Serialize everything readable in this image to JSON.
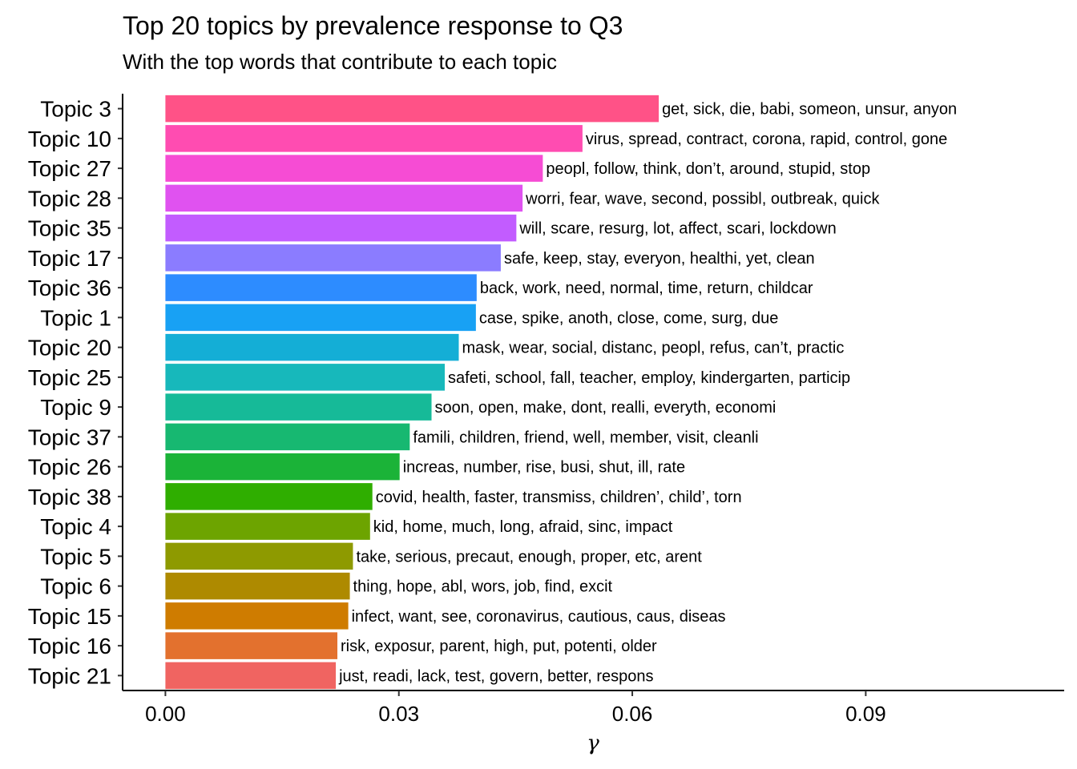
{
  "chart_data": {
    "type": "bar",
    "orientation": "horizontal",
    "title": "Top 20 topics by prevalence response to Q3",
    "subtitle": "With the top words that contribute to each topic",
    "xlabel": "γ",
    "ylabel": "",
    "xlim": [
      -0.0055,
      0.1155
    ],
    "xticks": [
      "0.00",
      "0.03",
      "0.06",
      "0.09"
    ],
    "xtick_values": [
      0.0,
      0.03,
      0.06,
      0.09
    ],
    "grid": false,
    "legend": "none",
    "categories": [
      "Topic 3",
      "Topic 10",
      "Topic 27",
      "Topic 28",
      "Topic 35",
      "Topic 17",
      "Topic 36",
      "Topic 1",
      "Topic 20",
      "Topic 25",
      "Topic 9",
      "Topic 37",
      "Topic 26",
      "Topic 38",
      "Topic 4",
      "Topic 5",
      "Topic 6",
      "Topic 15",
      "Topic 16",
      "Topic 21"
    ],
    "values": [
      0.0634,
      0.0536,
      0.0485,
      0.0459,
      0.0451,
      0.0431,
      0.04,
      0.0399,
      0.0377,
      0.0359,
      0.0342,
      0.0314,
      0.0301,
      0.0266,
      0.0263,
      0.0241,
      0.0237,
      0.0235,
      0.0221,
      0.0219
    ],
    "labels": [
      "get, sick, die, babi, someon, unsur, anyon",
      "virus, spread, contract, corona, rapid, control, gone",
      "peopl, follow, think, don’t, around, stupid, stop",
      "worri, fear, wave, second, possibl, outbreak, quick",
      "will, scare, resurg, lot, affect, scari, lockdown",
      "safe, keep, stay, everyon, healthi, yet, clean",
      "back, work, need, normal, time, return, childcar",
      "case, spike, anoth, close, come, surg, due",
      "mask, wear, social, distanc, peopl, refus, can’t, practic",
      "safeti, school, fall, teacher, employ, kindergarten, particip",
      "soon, open, make, dont, realli, everyth, economi",
      "famili, children, friend, well, member, visit, cleanli",
      "increas, number, rise, busi, shut, ill, rate",
      "covid, health, faster, transmiss, children’, child’, torn",
      "kid, home, much, long, afraid, sinc, impact",
      "take, serious, precaut, enough, proper, etc, arent",
      "thing, hope, abl, wors, job, find, excit",
      "infect, want, see, coronavirus, cautious, caus, diseas",
      "risk, exposur, parent, high, put, potenti, older",
      "just, readi, lack, test, govern, better, respons"
    ],
    "colors": [
      "#FF5287",
      "#FF4CB1",
      "#F64CD4",
      "#E052F0",
      "#C25CFF",
      "#8B7CFF",
      "#2D8CFF",
      "#18A1F4",
      "#14AED6",
      "#17B8BB",
      "#16BA98",
      "#17B871",
      "#1BB338",
      "#2FAE00",
      "#6DA400",
      "#8E9A00",
      "#AE8A00",
      "#CF7C00",
      "#E3712E",
      "#F06461"
    ]
  }
}
